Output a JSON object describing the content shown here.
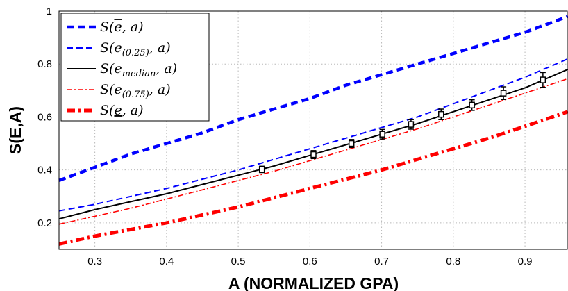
{
  "chart_data": {
    "type": "line",
    "xlabel": "A (NORMALIZED GPA)",
    "ylabel": "S(E,A)",
    "xlim": [
      0.25,
      0.96
    ],
    "ylim": [
      0.1,
      1.0
    ],
    "x_ticks": [
      "0.3",
      "0.4",
      "0.5",
      "0.6",
      "0.7",
      "0.8",
      "0.9"
    ],
    "y_ticks": [
      "0.2",
      "0.4",
      "0.6",
      "0.8",
      "1"
    ],
    "grid": true,
    "legend_position": "top-left",
    "series": [
      {
        "name": "S(ē, a)",
        "color": "#0000ff",
        "style": "dashed-thick",
        "x": [
          0.25,
          0.3,
          0.35,
          0.4,
          0.45,
          0.5,
          0.55,
          0.6,
          0.65,
          0.7,
          0.75,
          0.8,
          0.85,
          0.9,
          0.96
        ],
        "y": [
          0.36,
          0.41,
          0.46,
          0.5,
          0.54,
          0.59,
          0.63,
          0.67,
          0.72,
          0.76,
          0.8,
          0.84,
          0.88,
          0.92,
          0.98
        ]
      },
      {
        "name": "S(e(0.25), a)",
        "color": "#0000ff",
        "style": "dashed",
        "x": [
          0.25,
          0.3,
          0.35,
          0.4,
          0.45,
          0.5,
          0.55,
          0.6,
          0.65,
          0.7,
          0.75,
          0.8,
          0.85,
          0.9,
          0.96
        ],
        "y": [
          0.245,
          0.27,
          0.3,
          0.33,
          0.365,
          0.4,
          0.44,
          0.48,
          0.52,
          0.56,
          0.6,
          0.65,
          0.7,
          0.75,
          0.82
        ]
      },
      {
        "name": "S(emedian, a)",
        "color": "#000000",
        "style": "solid",
        "x": [
          0.25,
          0.3,
          0.35,
          0.4,
          0.45,
          0.5,
          0.55,
          0.6,
          0.65,
          0.7,
          0.75,
          0.8,
          0.85,
          0.9,
          0.96
        ],
        "y": [
          0.215,
          0.25,
          0.28,
          0.31,
          0.345,
          0.38,
          0.415,
          0.455,
          0.495,
          0.535,
          0.575,
          0.62,
          0.665,
          0.71,
          0.78
        ]
      },
      {
        "name": "S(e(0.75), a)",
        "color": "#ff0000",
        "style": "dash-dot",
        "x": [
          0.25,
          0.3,
          0.35,
          0.4,
          0.45,
          0.5,
          0.55,
          0.6,
          0.65,
          0.7,
          0.75,
          0.8,
          0.85,
          0.9,
          0.96
        ],
        "y": [
          0.195,
          0.225,
          0.255,
          0.29,
          0.325,
          0.36,
          0.395,
          0.435,
          0.475,
          0.515,
          0.555,
          0.6,
          0.645,
          0.69,
          0.745
        ]
      },
      {
        "name": "S(e, a)",
        "color": "#ff0000",
        "style": "dash-dot-thick",
        "x": [
          0.25,
          0.3,
          0.35,
          0.4,
          0.45,
          0.5,
          0.55,
          0.6,
          0.65,
          0.7,
          0.75,
          0.8,
          0.85,
          0.9,
          0.96
        ],
        "y": [
          0.12,
          0.15,
          0.175,
          0.2,
          0.23,
          0.26,
          0.295,
          0.33,
          0.365,
          0.4,
          0.44,
          0.48,
          0.52,
          0.565,
          0.62
        ]
      }
    ],
    "error_bars": {
      "color": "#000000",
      "x": [
        0.533,
        0.605,
        0.658,
        0.701,
        0.741,
        0.783,
        0.826,
        0.87,
        0.925
      ],
      "y": [
        0.402,
        0.458,
        0.5,
        0.535,
        0.572,
        0.61,
        0.645,
        0.69,
        0.74
      ],
      "err": [
        0.012,
        0.015,
        0.015,
        0.018,
        0.018,
        0.02,
        0.02,
        0.024,
        0.028
      ]
    },
    "legend": [
      {
        "base": "S(",
        "arg": "e",
        "sub": "",
        "rest": ", a)",
        "decor": "overline"
      },
      {
        "base": "S(",
        "arg": "e",
        "sub": "(0.25)",
        "rest": ", a)",
        "decor": ""
      },
      {
        "base": "S(",
        "arg": "e",
        "sub": "median",
        "rest": ", a)",
        "decor": ""
      },
      {
        "base": "S(",
        "arg": "e",
        "sub": "(0.75)",
        "rest": ", a)",
        "decor": ""
      },
      {
        "base": "S(",
        "arg": "e",
        "sub": "",
        "rest": ", a)",
        "decor": "underline"
      }
    ]
  }
}
